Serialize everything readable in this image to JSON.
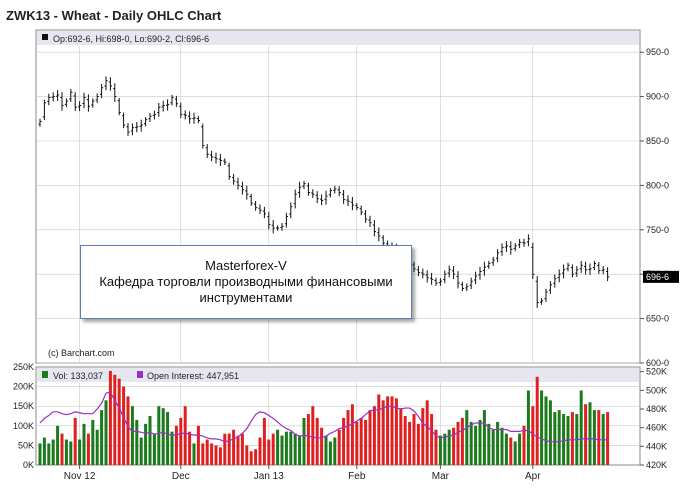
{
  "header": {
    "title": "ZWK13 - Wheat - Daily OHLC Chart",
    "ohlc_readout": "Op:692-6, Hi:698-0, Lo:690-2, Cl:696-6",
    "last_price_label": "696-6",
    "copyright": "(c) Barchart.com"
  },
  "callout": {
    "line1": "Masterforex-V",
    "line2": "Кафедра торговли производными финансовыми",
    "line3": "инструментами"
  },
  "volume_panel": {
    "vol_legend": "Vol: 133,037",
    "oi_legend": "Open Interest: 447,951"
  },
  "colors": {
    "header_band": "#e6e6f0",
    "up_volume": "#1b7a1b",
    "down_volume": "#e02020",
    "open_interest": "#9a30c8",
    "grid": "#c8c8c8",
    "price_marker": "#000000"
  },
  "chart_data": [
    {
      "type": "ohlc",
      "title": "ZWK13 - Wheat - Daily OHLC Chart",
      "ylim": [
        600,
        975
      ],
      "y_ticks": [
        "950-0",
        "900-0",
        "850-0",
        "800-0",
        "750-0",
        "700-0",
        "650-0",
        "600-0"
      ],
      "y_tick_values": [
        950,
        900,
        850,
        800,
        750,
        700,
        650,
        600
      ],
      "x_ticks": [
        "Nov 12",
        "Dec",
        "Jan 13",
        "Feb",
        "Mar",
        "Apr"
      ],
      "x_tick_index": [
        9,
        32,
        52,
        72,
        91,
        112
      ],
      "grid": true,
      "close": [
        872,
        893,
        899,
        900,
        902,
        890,
        895,
        905,
        888,
        890,
        899,
        889,
        895,
        900,
        910,
        918,
        912,
        900,
        882,
        868,
        860,
        865,
        866,
        868,
        874,
        878,
        880,
        888,
        890,
        891,
        899,
        892,
        880,
        879,
        875,
        876,
        873,
        845,
        835,
        832,
        830,
        828,
        826,
        810,
        805,
        800,
        795,
        790,
        780,
        775,
        772,
        768,
        756,
        752,
        752,
        754,
        765,
        776,
        790,
        798,
        802,
        792,
        790,
        785,
        783,
        788,
        794,
        796,
        792,
        784,
        782,
        778,
        775,
        770,
        762,
        758,
        748,
        743,
        735,
        732,
        730,
        728,
        724,
        718,
        712,
        706,
        702,
        700,
        696,
        694,
        690,
        692,
        700,
        705,
        700,
        690,
        684,
        686,
        692,
        698,
        703,
        708,
        712,
        716,
        724,
        730,
        732,
        728,
        732,
        736,
        735,
        740,
        700,
        668,
        670,
        680,
        688,
        695,
        700,
        705,
        710,
        700,
        705,
        710,
        705,
        706,
        712,
        704,
        705,
        697
      ]
    },
    {
      "type": "bar",
      "title": "Volume",
      "ylim": [
        0,
        250000
      ],
      "y_ticks": [
        "250K",
        "200K",
        "150K",
        "100K",
        "50K",
        "0K"
      ],
      "y_tick_values": [
        250000,
        200000,
        150000,
        100000,
        50000,
        0
      ],
      "series": [
        {
          "name": "Vol",
          "values": [
            55000,
            70000,
            55000,
            65000,
            100000,
            80000,
            65000,
            60000,
            120000,
            65000,
            105000,
            80000,
            115000,
            90000,
            140000,
            165000,
            240000,
            230000,
            220000,
            200000,
            175000,
            150000,
            115000,
            70000,
            105000,
            125000,
            80000,
            150000,
            145000,
            135000,
            85000,
            100000,
            120000,
            150000,
            85000,
            55000,
            100000,
            55000,
            65000,
            55000,
            50000,
            45000,
            80000,
            80000,
            90000,
            75000,
            80000,
            50000,
            35000,
            40000,
            70000,
            120000,
            65000,
            80000,
            90000,
            75000,
            85000,
            85000,
            80000,
            75000,
            120000,
            130000,
            150000,
            120000,
            95000,
            75000,
            60000,
            70000,
            90000,
            120000,
            140000,
            155000,
            110000,
            120000,
            115000,
            140000,
            150000,
            180000,
            165000,
            175000,
            175000,
            170000,
            145000,
            125000,
            110000,
            130000,
            105000,
            145000,
            165000,
            130000,
            90000,
            75000,
            80000,
            90000,
            95000,
            110000,
            120000,
            140000,
            110000,
            100000,
            115000,
            140000,
            105000,
            90000,
            110000,
            95000,
            80000,
            70000,
            60000,
            80000,
            100000,
            190000,
            150000,
            225000,
            190000,
            175000,
            165000,
            135000,
            140000,
            130000,
            125000,
            135000,
            130000,
            190000,
            155000,
            160000,
            140000,
            140000,
            130000,
            135000
          ]
        },
        {
          "name": "Open Interest",
          "values": [
            465000,
            470000,
            473000,
            477000,
            477000,
            475000,
            474000,
            475000,
            477000,
            476000,
            475000,
            475000,
            475000,
            480000,
            486000,
            497000,
            498000,
            489000,
            481000,
            471000,
            461000,
            456000,
            456000,
            455000,
            454000,
            455000,
            453000,
            454000,
            455000,
            453000,
            452000,
            452000,
            454000,
            454000,
            453000,
            452000,
            452000,
            451000,
            449000,
            448000,
            448000,
            447000,
            445000,
            446000,
            448000,
            450000,
            454000,
            459000,
            467000,
            474000,
            477000,
            476000,
            473000,
            470000,
            466000,
            462000,
            459000,
            457000,
            453000,
            451000,
            452000,
            451000,
            450000,
            449000,
            449000,
            451000,
            454000,
            456000,
            459000,
            460000,
            462000,
            464000,
            467000,
            470000,
            474000,
            478000,
            479000,
            479000,
            481000,
            483000,
            483000,
            481000,
            480000,
            481000,
            481000,
            478000,
            472000,
            465000,
            461000,
            457000,
            451000,
            449000,
            450000,
            451000,
            452000,
            455000,
            457000,
            460000,
            463000,
            465000,
            465000,
            465000,
            460000,
            458000,
            458000,
            458000,
            458000,
            456000,
            456000,
            456000,
            457000,
            457000,
            453000,
            450000,
            448000,
            446000,
            445000,
            445000,
            445000,
            446000,
            447000,
            447000,
            447000,
            448000,
            448000,
            448000,
            448000,
            447000,
            447000,
            447000
          ]
        }
      ],
      "oi_ylim": [
        420000,
        525000
      ],
      "oi_ticks": [
        "520K",
        "500K",
        "480K",
        "460K",
        "440K",
        "420K"
      ],
      "oi_tick_values": [
        520000,
        500000,
        480000,
        460000,
        440000,
        420000
      ]
    }
  ]
}
